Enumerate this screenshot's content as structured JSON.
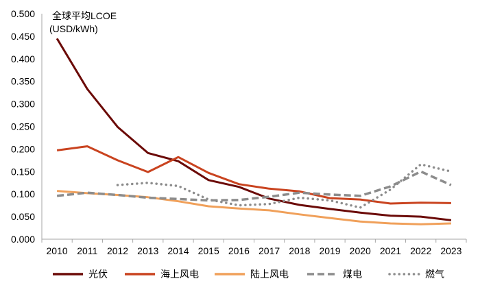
{
  "chart_data": {
    "type": "line",
    "title": "全球平均LCOE",
    "ylabel": "(USD/kWh)",
    "xlabel": "",
    "ylim": [
      0,
      0.5
    ],
    "yticks": [
      "0.000",
      "0.050",
      "0.100",
      "0.150",
      "0.200",
      "0.250",
      "0.300",
      "0.350",
      "0.400",
      "0.450",
      "0.500"
    ],
    "categories": [
      "2010",
      "2011",
      "2012",
      "2013",
      "2014",
      "2015",
      "2016",
      "2017",
      "2018",
      "2019",
      "2020",
      "2021",
      "2022",
      "2023"
    ],
    "grid": false,
    "legend_position": "bottom",
    "series": [
      {
        "name": "光伏",
        "color": "#6B0A07",
        "style": "solid",
        "values": [
          0.445,
          0.333,
          0.249,
          0.191,
          0.173,
          0.131,
          0.116,
          0.09,
          0.076,
          0.067,
          0.059,
          0.052,
          0.05,
          0.042
        ]
      },
      {
        "name": "海上风电",
        "color": "#C9431F",
        "style": "solid",
        "values": [
          0.197,
          0.206,
          0.175,
          0.149,
          0.182,
          0.147,
          0.122,
          0.112,
          0.106,
          0.091,
          0.088,
          0.079,
          0.081,
          0.08
        ]
      },
      {
        "name": "陆上风电",
        "color": "#F0A05A",
        "style": "solid",
        "values": [
          0.107,
          0.102,
          0.098,
          0.093,
          0.084,
          0.073,
          0.068,
          0.064,
          0.055,
          0.047,
          0.039,
          0.035,
          0.033,
          0.035
        ]
      },
      {
        "name": "煤电",
        "color": "#8C8C8C",
        "style": "dashed",
        "values": [
          0.096,
          0.103,
          0.098,
          0.092,
          0.089,
          0.086,
          0.087,
          0.094,
          0.103,
          0.099,
          0.096,
          0.117,
          0.15,
          0.12
        ]
      },
      {
        "name": "燃气",
        "color": "#8C8C8C",
        "style": "dotted",
        "values": [
          null,
          null,
          0.12,
          0.125,
          0.118,
          0.088,
          0.075,
          0.078,
          0.092,
          0.086,
          0.07,
          0.11,
          0.166,
          0.15
        ]
      }
    ]
  }
}
